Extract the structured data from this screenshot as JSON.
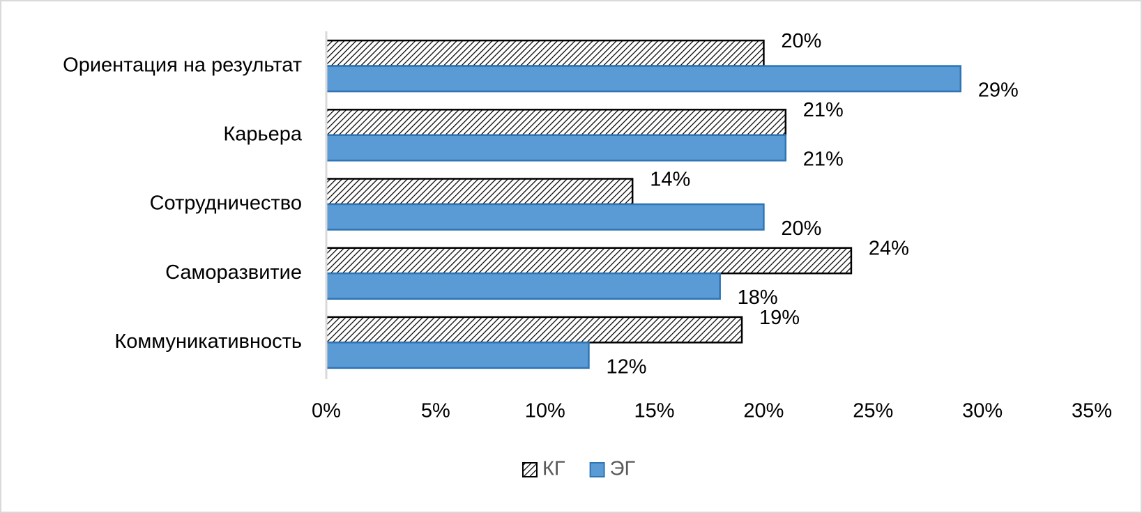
{
  "chart_data": {
    "type": "hbar",
    "categories": [
      "Ориентация на результат",
      "Карьера",
      "Сотрудничество",
      "Саморазвитие",
      "Коммуникативность"
    ],
    "series": [
      {
        "name": "КГ",
        "color": "#000000",
        "hatch": true,
        "values": [
          20,
          21,
          14,
          24,
          19
        ],
        "value_labels": [
          "20%",
          "21%",
          "14%",
          "24%",
          "19%"
        ]
      },
      {
        "name": "ЭГ",
        "color": "#5b9bd5",
        "hatch": false,
        "values": [
          29,
          21,
          20,
          18,
          12
        ],
        "value_labels": [
          "29%",
          "21%",
          "20%",
          "18%",
          "12%"
        ]
      }
    ],
    "xlim": [
      0,
      35
    ],
    "xticks": [
      {
        "value": 0,
        "label": "0%"
      },
      {
        "value": 5,
        "label": "5%"
      },
      {
        "value": 10,
        "label": "10%"
      },
      {
        "value": 15,
        "label": "15%"
      },
      {
        "value": 20,
        "label": "20%"
      },
      {
        "value": 25,
        "label": "25%"
      },
      {
        "value": 30,
        "label": "30%"
      },
      {
        "value": 35,
        "label": "35%"
      }
    ],
    "legend": "bottom"
  }
}
